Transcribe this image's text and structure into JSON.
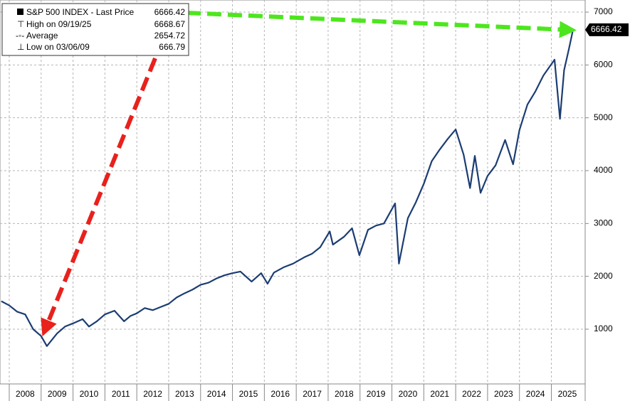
{
  "chart_data": {
    "type": "line",
    "series": [
      {
        "name": "S&P 500 INDEX - Last Price",
        "color": "#1c3d73",
        "last_value": 6666.42,
        "x": [
          2007.75,
          2008.0,
          2008.25,
          2008.5,
          2008.75,
          2009.0,
          2009.18,
          2009.5,
          2009.75,
          2010.0,
          2010.3,
          2010.5,
          2010.75,
          2011.0,
          2011.3,
          2011.6,
          2011.8,
          2012.0,
          2012.25,
          2012.5,
          2012.75,
          2013.0,
          2013.25,
          2013.5,
          2013.75,
          2014.0,
          2014.25,
          2014.5,
          2014.75,
          2015.0,
          2015.25,
          2015.6,
          2015.9,
          2016.1,
          2016.3,
          2016.6,
          2016.9,
          2017.25,
          2017.5,
          2017.75,
          2018.05,
          2018.15,
          2018.5,
          2018.75,
          2018.98,
          2019.25,
          2019.5,
          2019.75,
          2020.1,
          2020.22,
          2020.5,
          2020.75,
          2021.0,
          2021.25,
          2021.5,
          2021.75,
          2022.0,
          2022.25,
          2022.45,
          2022.6,
          2022.78,
          2023.0,
          2023.25,
          2023.55,
          2023.8,
          2024.0,
          2024.25,
          2024.5,
          2024.75,
          2025.1,
          2025.27,
          2025.4,
          2025.55,
          2025.68
        ],
        "values": [
          1530,
          1450,
          1330,
          1280,
          1000,
          870,
          680,
          920,
          1050,
          1110,
          1190,
          1050,
          1150,
          1280,
          1350,
          1150,
          1250,
          1300,
          1400,
          1360,
          1420,
          1480,
          1600,
          1680,
          1750,
          1840,
          1880,
          1960,
          2020,
          2060,
          2090,
          1900,
          2060,
          1860,
          2070,
          2170,
          2240,
          2360,
          2430,
          2550,
          2850,
          2600,
          2750,
          2910,
          2400,
          2880,
          2960,
          3000,
          3380,
          2240,
          3100,
          3400,
          3750,
          4180,
          4400,
          4600,
          4780,
          4300,
          3670,
          4280,
          3580,
          3900,
          4100,
          4580,
          4120,
          4770,
          5250,
          5500,
          5800,
          6100,
          4980,
          5900,
          6300,
          6666.42
        ]
      }
    ],
    "stats": [
      {
        "label": "High on 09/19/25",
        "value": 6668.67
      },
      {
        "label": "Average",
        "value": 2654.72
      },
      {
        "label": "Low on 03/06/09",
        "value": 666.79
      }
    ],
    "xlim": [
      2007.71,
      2026.06
    ],
    "ylim": [
      -36,
      7229
    ],
    "yticks": [
      1000,
      2000,
      3000,
      4000,
      5000,
      6000,
      7000
    ],
    "xticks": [
      {
        "value": 2008,
        "label": "2008"
      },
      {
        "value": 2009,
        "label": "2009"
      },
      {
        "value": 2010,
        "label": "2010"
      },
      {
        "value": 2011,
        "label": "2011"
      },
      {
        "value": 2012,
        "label": "2012"
      },
      {
        "value": 2013,
        "label": "2013"
      },
      {
        "value": 2014,
        "label": "2014"
      },
      {
        "value": 2015,
        "label": "2015"
      },
      {
        "value": 2016,
        "label": "2016"
      },
      {
        "value": 2017,
        "label": "2017"
      },
      {
        "value": 2018,
        "label": "2018"
      },
      {
        "value": 2019,
        "label": "2019"
      },
      {
        "value": 2020,
        "label": "2020"
      },
      {
        "value": 2021,
        "label": "2021"
      },
      {
        "value": 2022,
        "label": "2022"
      },
      {
        "value": 2023,
        "label": "2023"
      },
      {
        "value": 2024,
        "label": "2024"
      },
      {
        "value": 2025,
        "label": "2025"
      }
    ],
    "grid": true
  }
}
